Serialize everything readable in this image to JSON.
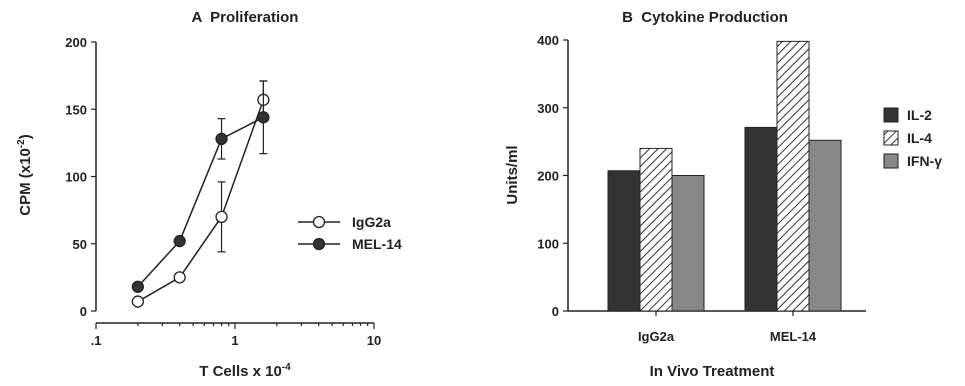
{
  "chart_data": [
    {
      "type": "line",
      "title": "A  Proliferation",
      "ylabel": "CPM (x10",
      "ylabel_sup": "-2",
      "ylabel_end": ")",
      "xlabel": "T Cells x 10",
      "xlabel_sup": "-4",
      "x_scale": "log",
      "xlim": [
        0.1,
        10
      ],
      "ylim": [
        0,
        200
      ],
      "x_ticks": [
        0.1,
        1,
        10
      ],
      "x_tick_labels": [
        ".1",
        "1",
        "10"
      ],
      "y_ticks": [
        0,
        50,
        100,
        150,
        200
      ],
      "y_tick_labels": [
        "0",
        "50",
        "100",
        "150",
        "200"
      ],
      "legend_position": "right",
      "series": [
        {
          "name": "IgG2a",
          "marker": "open-circle",
          "x": [
            0.2,
            0.4,
            0.8,
            1.6
          ],
          "y": [
            7,
            25,
            70,
            157
          ],
          "error": [
            0,
            0,
            26,
            14
          ]
        },
        {
          "name": "MEL-14",
          "marker": "filled-circle",
          "x": [
            0.2,
            0.4,
            0.8,
            1.6
          ],
          "y": [
            18,
            52,
            128,
            144
          ],
          "error": [
            0,
            0,
            15,
            27
          ]
        }
      ]
    },
    {
      "type": "bar",
      "title": "B  Cytokine Production",
      "ylabel": "Units/ml",
      "xlabel": "In Vivo Treatment",
      "ylim": [
        0,
        400
      ],
      "y_ticks": [
        0,
        100,
        200,
        300,
        400
      ],
      "y_tick_labels": [
        "0",
        "100",
        "200",
        "300",
        "400"
      ],
      "categories": [
        "IgG2a",
        "MEL-14"
      ],
      "legend_position": "right",
      "series": [
        {
          "name": "IL-2",
          "values": [
            207,
            271
          ],
          "color": "#333333",
          "pattern": "solid"
        },
        {
          "name": "IL-4",
          "values": [
            240,
            398
          ],
          "color": "#ffffff",
          "pattern": "hatch"
        },
        {
          "name": "IFN-γ",
          "values": [
            200,
            252
          ],
          "color": "#888888",
          "pattern": "solid"
        }
      ]
    }
  ]
}
